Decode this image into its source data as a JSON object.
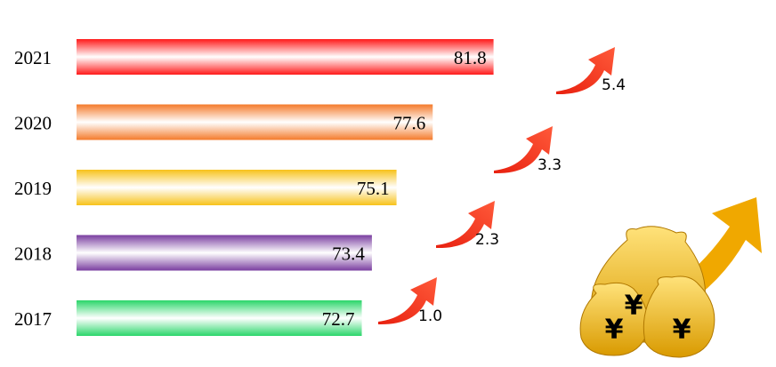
{
  "chart_data": {
    "type": "bar",
    "orientation": "horizontal",
    "categories": [
      "2021",
      "2020",
      "2019",
      "2018",
      "2017"
    ],
    "series": [
      {
        "values": [
          81.8,
          77.6,
          75.1,
          73.4,
          72.7
        ],
        "colors": [
          "#ff1a1a",
          "#f47a2a",
          "#f7c21a",
          "#7a3ea0",
          "#2bd66a"
        ]
      }
    ],
    "xlim": [
      53,
      90
    ],
    "annotations": [
      "1.0",
      "2.3",
      "3.3",
      "5.4"
    ],
    "decoration_text": [
      "¥",
      "¥",
      "¥"
    ]
  }
}
